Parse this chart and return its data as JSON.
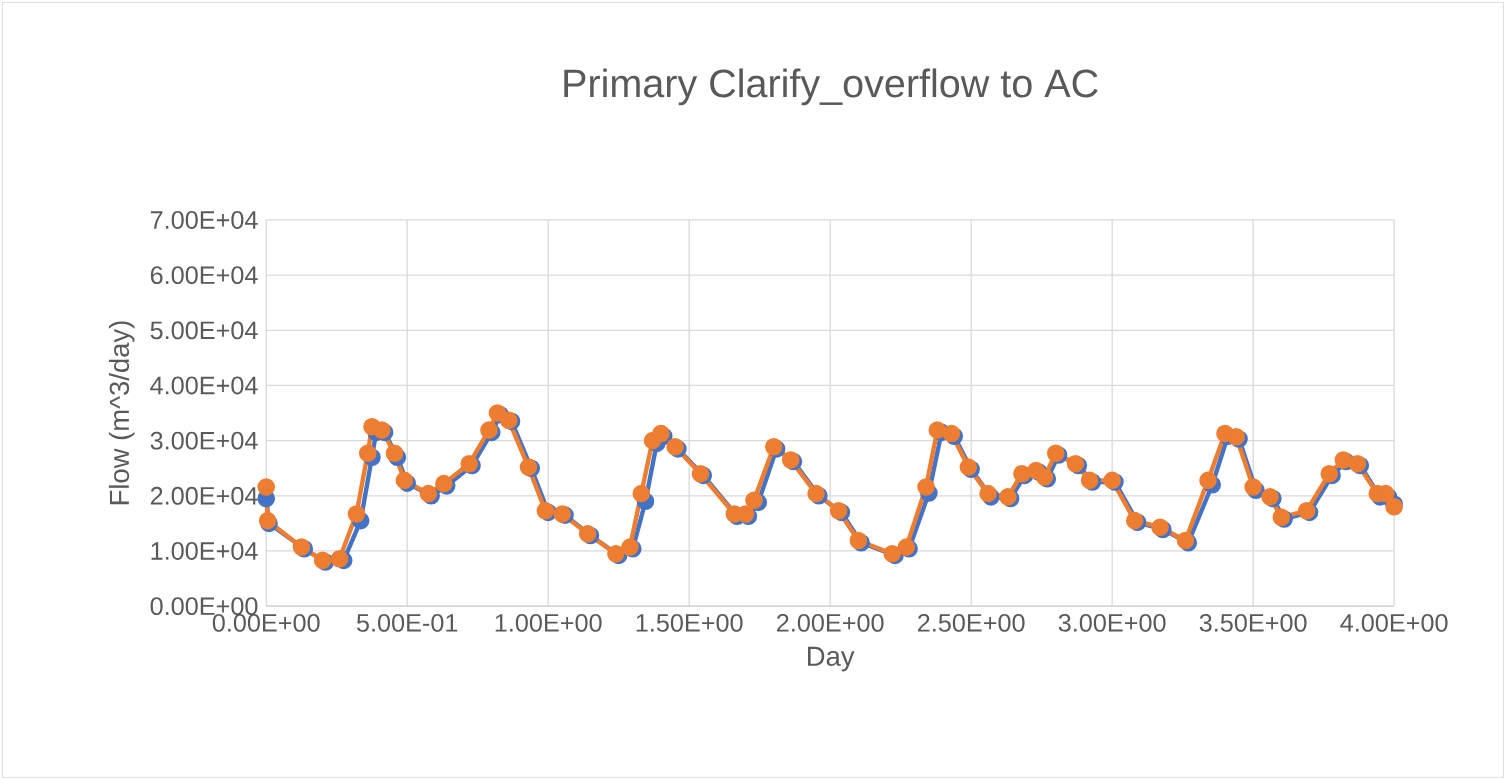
{
  "chart_data": {
    "type": "line",
    "title": "Primary Clarify_overflow to AC",
    "xlabel": "Day",
    "ylabel": "Flow (m^3/day)",
    "marker": "circle",
    "grid": true,
    "xlim": [
      0,
      4
    ],
    "ylim": [
      0,
      70000
    ],
    "xticks": [
      {
        "value": 0,
        "label": "0.00E+00"
      },
      {
        "value": 0.5,
        "label": "5.00E-01"
      },
      {
        "value": 1,
        "label": "1.00E+00"
      },
      {
        "value": 1.5,
        "label": "1.50E+00"
      },
      {
        "value": 2,
        "label": "2.00E+00"
      },
      {
        "value": 2.5,
        "label": "2.50E+00"
      },
      {
        "value": 3,
        "label": "3.00E+00"
      },
      {
        "value": 3.5,
        "label": "3.50E+00"
      },
      {
        "value": 4,
        "label": "4.00E+00"
      }
    ],
    "yticks": [
      {
        "value": 0,
        "label": "0.00E+00"
      },
      {
        "value": 10000,
        "label": "1.00E+04"
      },
      {
        "value": 20000,
        "label": "2.00E+04"
      },
      {
        "value": 30000,
        "label": "3.00E+04"
      },
      {
        "value": 40000,
        "label": "4.00E+04"
      },
      {
        "value": 50000,
        "label": "5.00E+04"
      },
      {
        "value": 60000,
        "label": "6.00E+04"
      },
      {
        "value": 70000,
        "label": "7.00E+04"
      }
    ],
    "series": [
      {
        "color": "#4472c4",
        "x": [
          0,
          0.01,
          0.135,
          0.21,
          0.275,
          0.335,
          0.375,
          0.39,
          0.42,
          0.465,
          0.5,
          0.585,
          0.64,
          0.73,
          0.8,
          0.83,
          0.87,
          0.94,
          1.0,
          1.06,
          1.15,
          1.25,
          1.3,
          1.345,
          1.385,
          1.41,
          1.46,
          1.55,
          1.67,
          1.71,
          1.745,
          1.81,
          1.87,
          1.96,
          2.04,
          2.11,
          2.23,
          2.28,
          2.35,
          2.395,
          2.44,
          2.5,
          2.57,
          2.64,
          2.69,
          2.74,
          2.77,
          2.81,
          2.88,
          2.93,
          3.01,
          3.09,
          3.18,
          3.27,
          3.355,
          3.41,
          3.45,
          3.51,
          3.57,
          3.61,
          3.7,
          3.78,
          3.83,
          3.88,
          3.95,
          3.98,
          4.0
        ],
        "values": [
          19500,
          15000,
          10400,
          8000,
          8300,
          15500,
          27000,
          31500,
          31500,
          27000,
          22300,
          20000,
          21800,
          25500,
          31500,
          34700,
          33500,
          25000,
          17000,
          16500,
          12800,
          9200,
          10400,
          19000,
          29500,
          30800,
          28500,
          23700,
          16300,
          16300,
          18800,
          28500,
          26200,
          20000,
          17000,
          11500,
          9200,
          10400,
          20500,
          31500,
          30800,
          24800,
          19800,
          19500,
          23700,
          24300,
          23100,
          27400,
          25500,
          22500,
          22500,
          15200,
          13900,
          11500,
          22000,
          30800,
          30300,
          21000,
          19500,
          15800,
          17000,
          23700,
          26200,
          25500,
          19800,
          19800,
          18500
        ]
      },
      {
        "color": "#ed7d31",
        "x": [
          0,
          0.005,
          0.125,
          0.2,
          0.26,
          0.32,
          0.36,
          0.375,
          0.41,
          0.455,
          0.49,
          0.575,
          0.63,
          0.72,
          0.79,
          0.82,
          0.86,
          0.93,
          0.99,
          1.05,
          1.14,
          1.24,
          1.29,
          1.33,
          1.37,
          1.4,
          1.45,
          1.54,
          1.66,
          1.7,
          1.73,
          1.8,
          1.86,
          1.95,
          2.03,
          2.1,
          2.22,
          2.27,
          2.34,
          2.38,
          2.43,
          2.49,
          2.56,
          2.63,
          2.68,
          2.73,
          2.76,
          2.8,
          2.87,
          2.92,
          3.0,
          3.08,
          3.17,
          3.26,
          3.34,
          3.4,
          3.44,
          3.5,
          3.56,
          3.6,
          3.69,
          3.77,
          3.82,
          3.87,
          3.94,
          3.97,
          4.0
        ],
        "values": [
          21600,
          15500,
          10700,
          8300,
          8600,
          16700,
          27700,
          32500,
          31900,
          27700,
          22800,
          20400,
          22200,
          25800,
          31900,
          35000,
          33700,
          25200,
          17300,
          16700,
          13100,
          9500,
          10700,
          20400,
          30000,
          31300,
          28900,
          24000,
          16700,
          16700,
          19200,
          28900,
          26500,
          20400,
          17300,
          11900,
          9500,
          10700,
          21600,
          31900,
          31300,
          25200,
          20400,
          19800,
          24000,
          24600,
          23400,
          27700,
          25800,
          22800,
          22800,
          15500,
          14300,
          11900,
          22800,
          31300,
          30700,
          21600,
          19800,
          16100,
          17300,
          24000,
          26500,
          25800,
          20400,
          20400,
          18000
        ]
      }
    ]
  }
}
